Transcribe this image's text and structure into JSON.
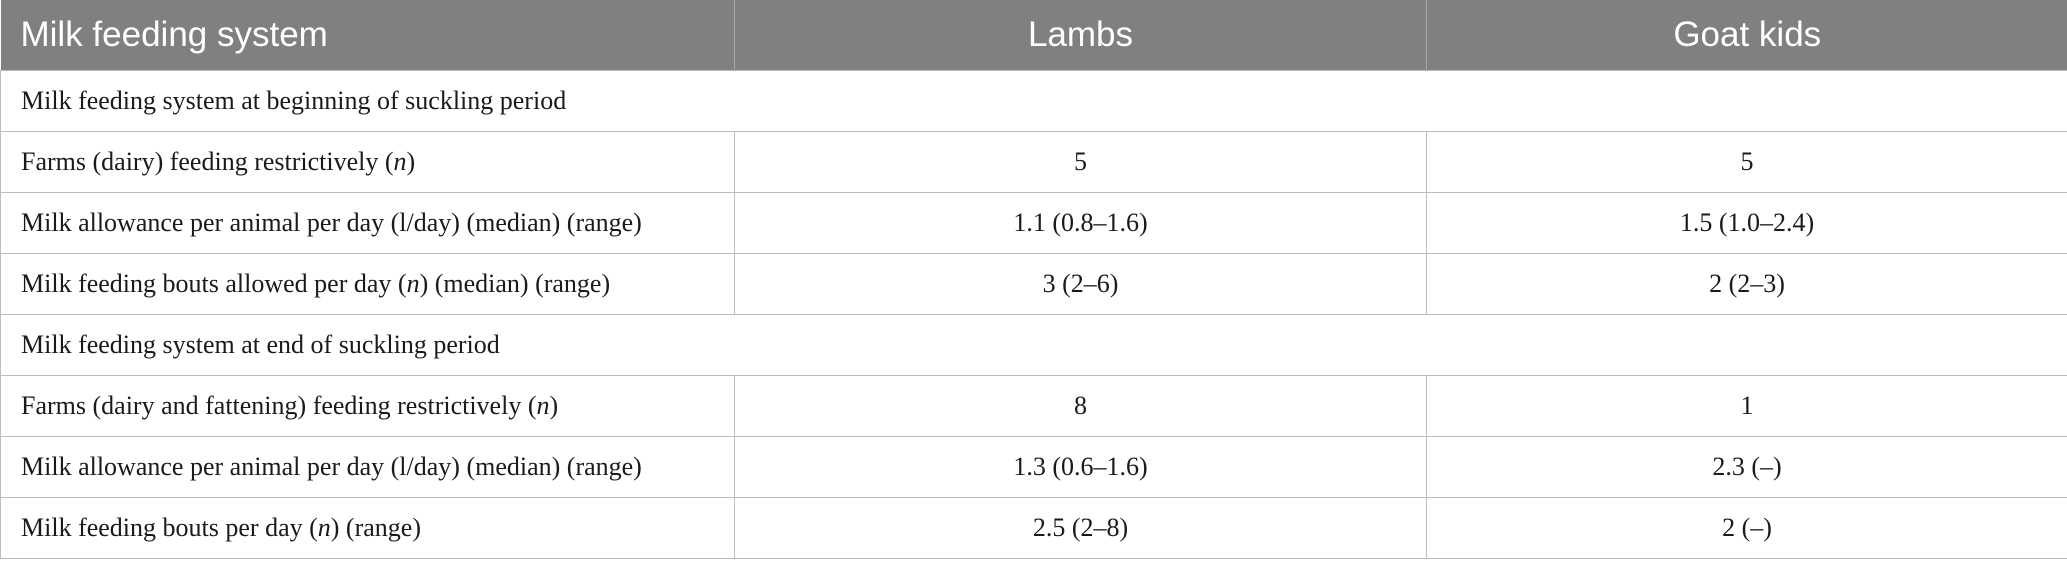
{
  "table": {
    "headers": [
      "Milk feeding system",
      "Lambs",
      "Goat kids"
    ],
    "sections": [
      {
        "title": "Milk feeding system at beginning of suckling period",
        "rows": [
          {
            "label_pre": "Farms (dairy) feeding restrictively (",
            "label_italic": "n",
            "label_post": ")",
            "lambs": "5",
            "goat_kids": "5"
          },
          {
            "label_pre": "Milk allowance per animal per day (l/day) (median) (range)",
            "label_italic": "",
            "label_post": "",
            "lambs": "1.1 (0.8–1.6)",
            "goat_kids": "1.5 (1.0–2.4)"
          },
          {
            "label_pre": "Milk feeding bouts allowed per day (",
            "label_italic": "n",
            "label_post": ") (median) (range)",
            "lambs": "3 (2–6)",
            "goat_kids": "2 (2–3)"
          }
        ]
      },
      {
        "title": "Milk feeding system at end of suckling period",
        "rows": [
          {
            "label_pre": "Farms (dairy and fattening) feeding restrictively (",
            "label_italic": "n",
            "label_post": ")",
            "lambs": "8",
            "goat_kids": "1"
          },
          {
            "label_pre": "Milk allowance per animal per day (l/day) (median) (range)",
            "label_italic": "",
            "label_post": "",
            "lambs": "1.3 (0.6–1.6)",
            "goat_kids": "2.3 (–)"
          },
          {
            "label_pre": "Milk feeding bouts per day (",
            "label_italic": "n",
            "label_post": ") (range)",
            "lambs": "2.5 (2–8)",
            "goat_kids": "2 (–)"
          }
        ]
      }
    ]
  }
}
